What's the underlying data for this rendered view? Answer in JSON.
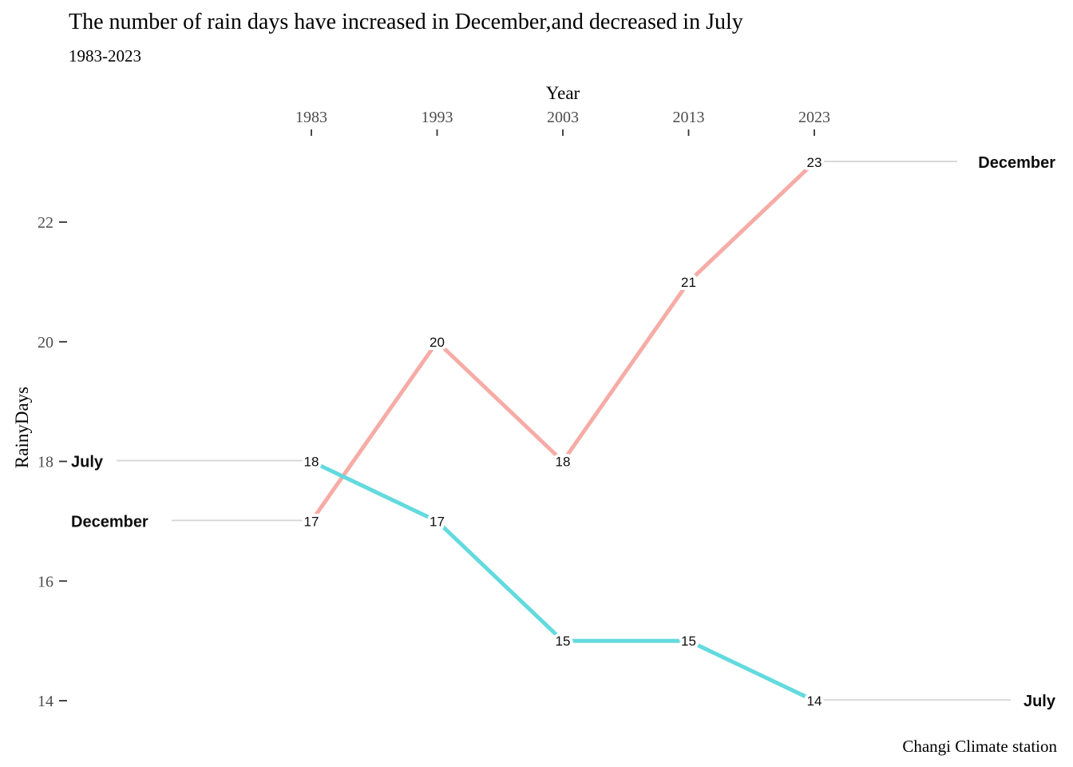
{
  "chart_data": {
    "type": "line",
    "title": "The number of rain days have increased in December,and decreased in July",
    "subtitle": "1983-2023",
    "xlabel": "Year",
    "ylabel": "RainyDays",
    "caption": "Changi Climate station",
    "x": [
      1983,
      1993,
      2003,
      2013,
      2023
    ],
    "x_tick_labels": [
      "1983",
      "1993",
      "2003",
      "2013",
      "2023"
    ],
    "y_ticks": [
      22,
      20,
      18,
      16,
      14
    ],
    "ylim": [
      13.1,
      23.7
    ],
    "x_axis_position": "top",
    "grid": false,
    "legend_position": "direct-labels-left-and-right",
    "series": [
      {
        "name": "December",
        "color": "#F6ACA6",
        "values": [
          17,
          20,
          18,
          21,
          23
        ]
      },
      {
        "name": "July",
        "color": "#63DADE",
        "values": [
          18,
          17,
          15,
          15,
          14
        ]
      }
    ],
    "colors": {
      "connector_line": "#d4d4d4",
      "tick_text": "#4d4d4d",
      "tick_mark": "#333333",
      "label_text": "#0d0d0d",
      "background": "#ffffff"
    }
  }
}
